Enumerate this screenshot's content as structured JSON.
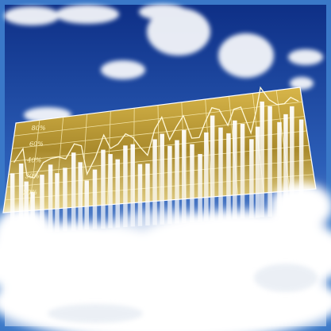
{
  "image": {
    "axis_labels": [
      "80%",
      "60%",
      "40%",
      "30%",
      "20%"
    ]
  }
}
